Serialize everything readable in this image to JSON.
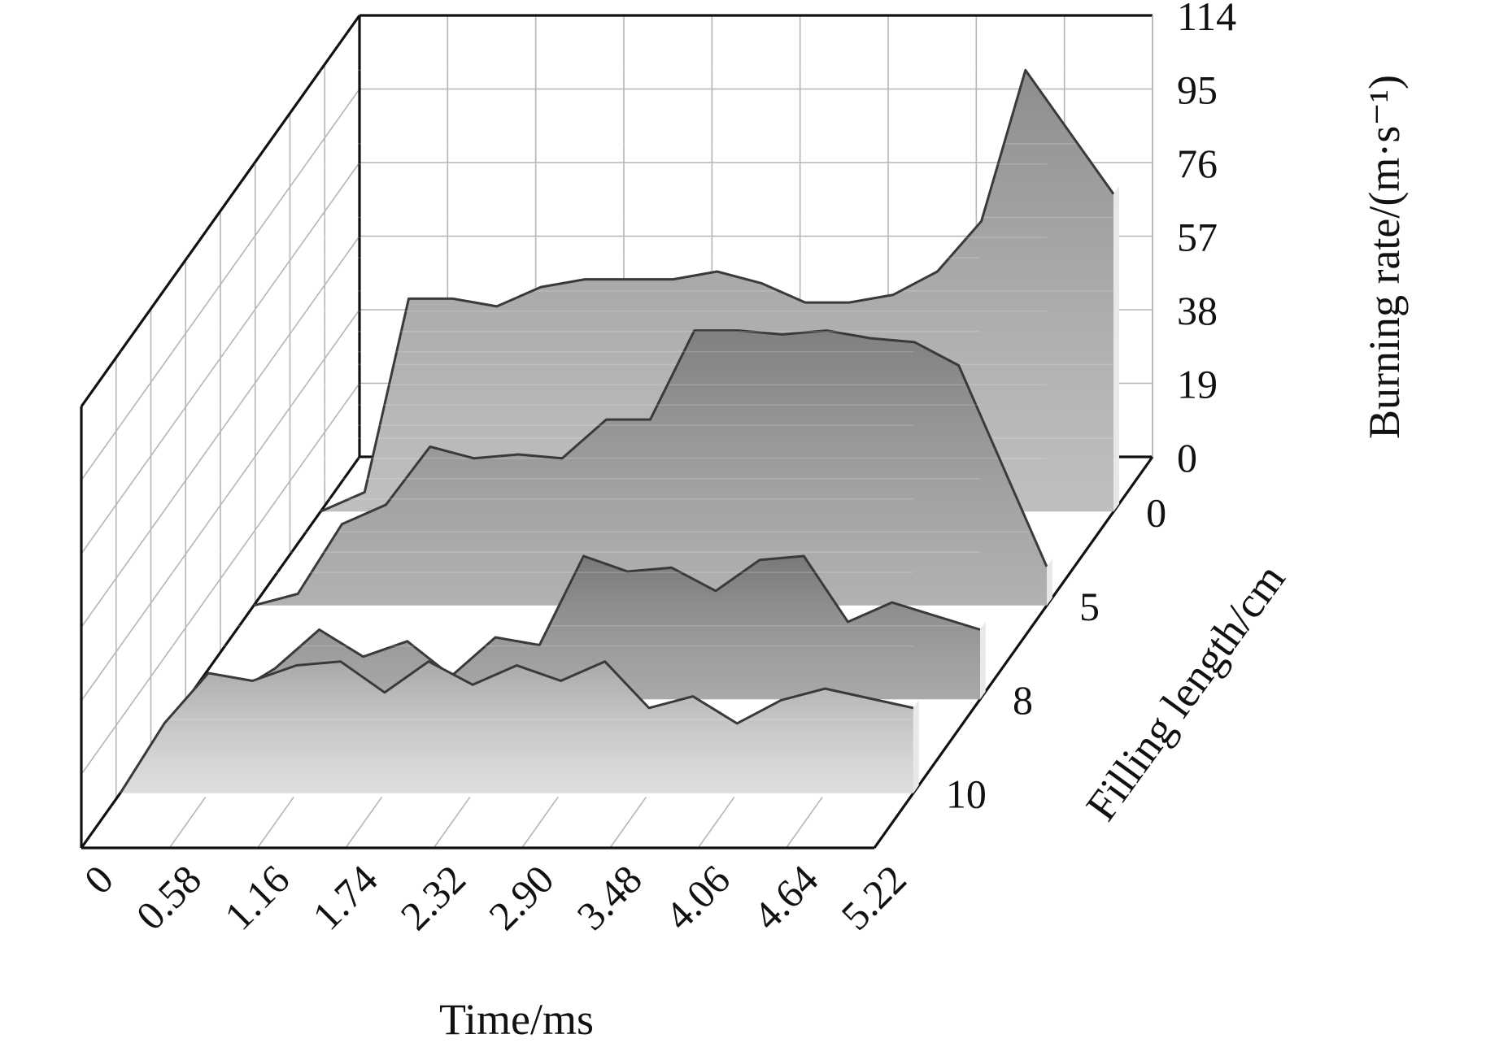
{
  "chart_data": {
    "type": "area",
    "subtype": "3d-ribbon",
    "title": "",
    "xlabel": "Time/ms",
    "ylabel": "Filling length/cm",
    "zlabel": "Burning rate/(m·s⁻¹)",
    "x_ticks": [
      "0",
      "0.58",
      "1.16",
      "1.74",
      "2.32",
      "2.90",
      "3.48",
      "4.06",
      "4.64",
      "5.22"
    ],
    "y_ticks": [
      "0",
      "5",
      "8",
      "10"
    ],
    "z_ticks": [
      "0",
      "19",
      "38",
      "57",
      "76",
      "95",
      "114"
    ],
    "zlim": [
      0,
      114
    ],
    "x": [
      0,
      0.29,
      0.58,
      0.87,
      1.16,
      1.45,
      1.74,
      2.03,
      2.32,
      2.61,
      2.9,
      3.19,
      3.48,
      3.77,
      4.06,
      4.35,
      4.64,
      5.22
    ],
    "series": [
      {
        "name": "0",
        "color": "#b4b4b4",
        "values": [
          0,
          5,
          55,
          55,
          53,
          58,
          60,
          60,
          60,
          62,
          59,
          54,
          54,
          56,
          62,
          75,
          114,
          82
        ]
      },
      {
        "name": "5",
        "color": "#a4a4a4",
        "values": [
          0,
          3,
          21,
          26,
          41,
          38,
          39,
          38,
          48,
          48,
          71,
          71,
          70,
          71,
          69,
          68,
          62,
          10
        ]
      },
      {
        "name": "8",
        "color": "#9a9a9a",
        "values": [
          0,
          1,
          8,
          18,
          11,
          15,
          6,
          16,
          14,
          37,
          33,
          34,
          28,
          36,
          37,
          20,
          25,
          18
        ]
      },
      {
        "name": "10",
        "color": "#d8d8d8",
        "values": [
          0,
          18,
          31,
          29,
          33,
          34,
          26,
          34,
          28,
          33,
          29,
          34,
          22,
          25,
          18,
          24,
          27,
          22
        ]
      }
    ],
    "grid": true,
    "legend": "none"
  }
}
